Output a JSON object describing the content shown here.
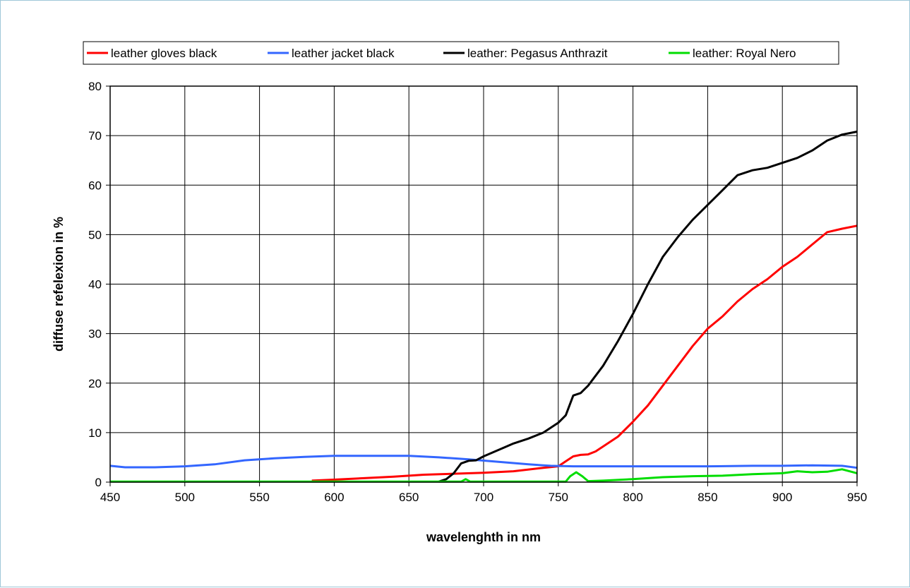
{
  "chart_data": {
    "type": "line",
    "title": "",
    "xlabel": "wavelenghth in nm",
    "ylabel": "diffuse refelexion in %",
    "xlim": [
      450,
      950
    ],
    "ylim": [
      0,
      80
    ],
    "xticks": [
      450,
      500,
      550,
      600,
      650,
      700,
      750,
      800,
      850,
      900,
      950
    ],
    "yticks": [
      0,
      10,
      20,
      30,
      40,
      50,
      60,
      70,
      80
    ],
    "grid": true,
    "legend_position": "top",
    "series": [
      {
        "name": "leather gloves black",
        "color": "#ff0000",
        "points": [
          [
            585,
            0.3
          ],
          [
            600,
            0.5
          ],
          [
            620,
            0.8
          ],
          [
            640,
            1.1
          ],
          [
            660,
            1.5
          ],
          [
            680,
            1.7
          ],
          [
            700,
            1.9
          ],
          [
            720,
            2.2
          ],
          [
            740,
            2.9
          ],
          [
            750,
            3.2
          ],
          [
            755,
            4.2
          ],
          [
            760,
            5.2
          ],
          [
            765,
            5.5
          ],
          [
            770,
            5.6
          ],
          [
            775,
            6.2
          ],
          [
            780,
            7.2
          ],
          [
            790,
            9.2
          ],
          [
            800,
            12.2
          ],
          [
            810,
            15.5
          ],
          [
            820,
            19.5
          ],
          [
            830,
            23.5
          ],
          [
            840,
            27.5
          ],
          [
            850,
            31.0
          ],
          [
            860,
            33.5
          ],
          [
            870,
            36.5
          ],
          [
            880,
            39.0
          ],
          [
            890,
            41.0
          ],
          [
            900,
            43.5
          ],
          [
            910,
            45.5
          ],
          [
            920,
            48.0
          ],
          [
            930,
            50.5
          ],
          [
            940,
            51.2
          ],
          [
            950,
            51.8
          ]
        ]
      },
      {
        "name": "leather jacket black",
        "color": "#3366ff",
        "points": [
          [
            450,
            3.3
          ],
          [
            460,
            3.0
          ],
          [
            480,
            3.0
          ],
          [
            500,
            3.2
          ],
          [
            520,
            3.6
          ],
          [
            540,
            4.4
          ],
          [
            560,
            4.8
          ],
          [
            580,
            5.1
          ],
          [
            600,
            5.3
          ],
          [
            620,
            5.3
          ],
          [
            650,
            5.3
          ],
          [
            670,
            5.0
          ],
          [
            690,
            4.6
          ],
          [
            710,
            4.1
          ],
          [
            730,
            3.6
          ],
          [
            745,
            3.3
          ],
          [
            760,
            3.2
          ],
          [
            800,
            3.2
          ],
          [
            850,
            3.2
          ],
          [
            880,
            3.3
          ],
          [
            900,
            3.3
          ],
          [
            920,
            3.4
          ],
          [
            940,
            3.3
          ],
          [
            950,
            2.9
          ]
        ]
      },
      {
        "name": "leather: Pegasus Anthrazit",
        "color": "#000000",
        "points": [
          [
            670,
            0.1
          ],
          [
            675,
            0.6
          ],
          [
            680,
            1.8
          ],
          [
            685,
            3.8
          ],
          [
            690,
            4.3
          ],
          [
            695,
            4.4
          ],
          [
            700,
            5.2
          ],
          [
            710,
            6.5
          ],
          [
            720,
            7.8
          ],
          [
            730,
            8.8
          ],
          [
            740,
            10.0
          ],
          [
            750,
            12.0
          ],
          [
            755,
            13.5
          ],
          [
            760,
            17.5
          ],
          [
            765,
            18.0
          ],
          [
            770,
            19.5
          ],
          [
            780,
            23.5
          ],
          [
            790,
            28.5
          ],
          [
            800,
            34.0
          ],
          [
            810,
            40.0
          ],
          [
            820,
            45.5
          ],
          [
            830,
            49.5
          ],
          [
            840,
            53.0
          ],
          [
            850,
            56.0
          ],
          [
            860,
            59.0
          ],
          [
            870,
            62.0
          ],
          [
            880,
            63.0
          ],
          [
            890,
            63.5
          ],
          [
            900,
            64.5
          ],
          [
            910,
            65.5
          ],
          [
            920,
            67.0
          ],
          [
            930,
            69.0
          ],
          [
            940,
            70.2
          ],
          [
            950,
            70.8
          ]
        ]
      },
      {
        "name": "leather: Royal Nero",
        "color": "#00dd00",
        "points": [
          [
            450,
            0.1
          ],
          [
            500,
            0.1
          ],
          [
            550,
            0.1
          ],
          [
            600,
            0.1
          ],
          [
            650,
            0.1
          ],
          [
            685,
            0.1
          ],
          [
            688,
            0.6
          ],
          [
            691,
            0.1
          ],
          [
            700,
            0.1
          ],
          [
            755,
            0.1
          ],
          [
            758,
            1.2
          ],
          [
            762,
            2.0
          ],
          [
            766,
            1.2
          ],
          [
            770,
            0.2
          ],
          [
            780,
            0.3
          ],
          [
            800,
            0.6
          ],
          [
            820,
            1.0
          ],
          [
            840,
            1.2
          ],
          [
            860,
            1.3
          ],
          [
            880,
            1.6
          ],
          [
            900,
            1.8
          ],
          [
            910,
            2.2
          ],
          [
            920,
            2.0
          ],
          [
            930,
            2.1
          ],
          [
            940,
            2.6
          ],
          [
            950,
            1.8
          ]
        ]
      }
    ]
  }
}
